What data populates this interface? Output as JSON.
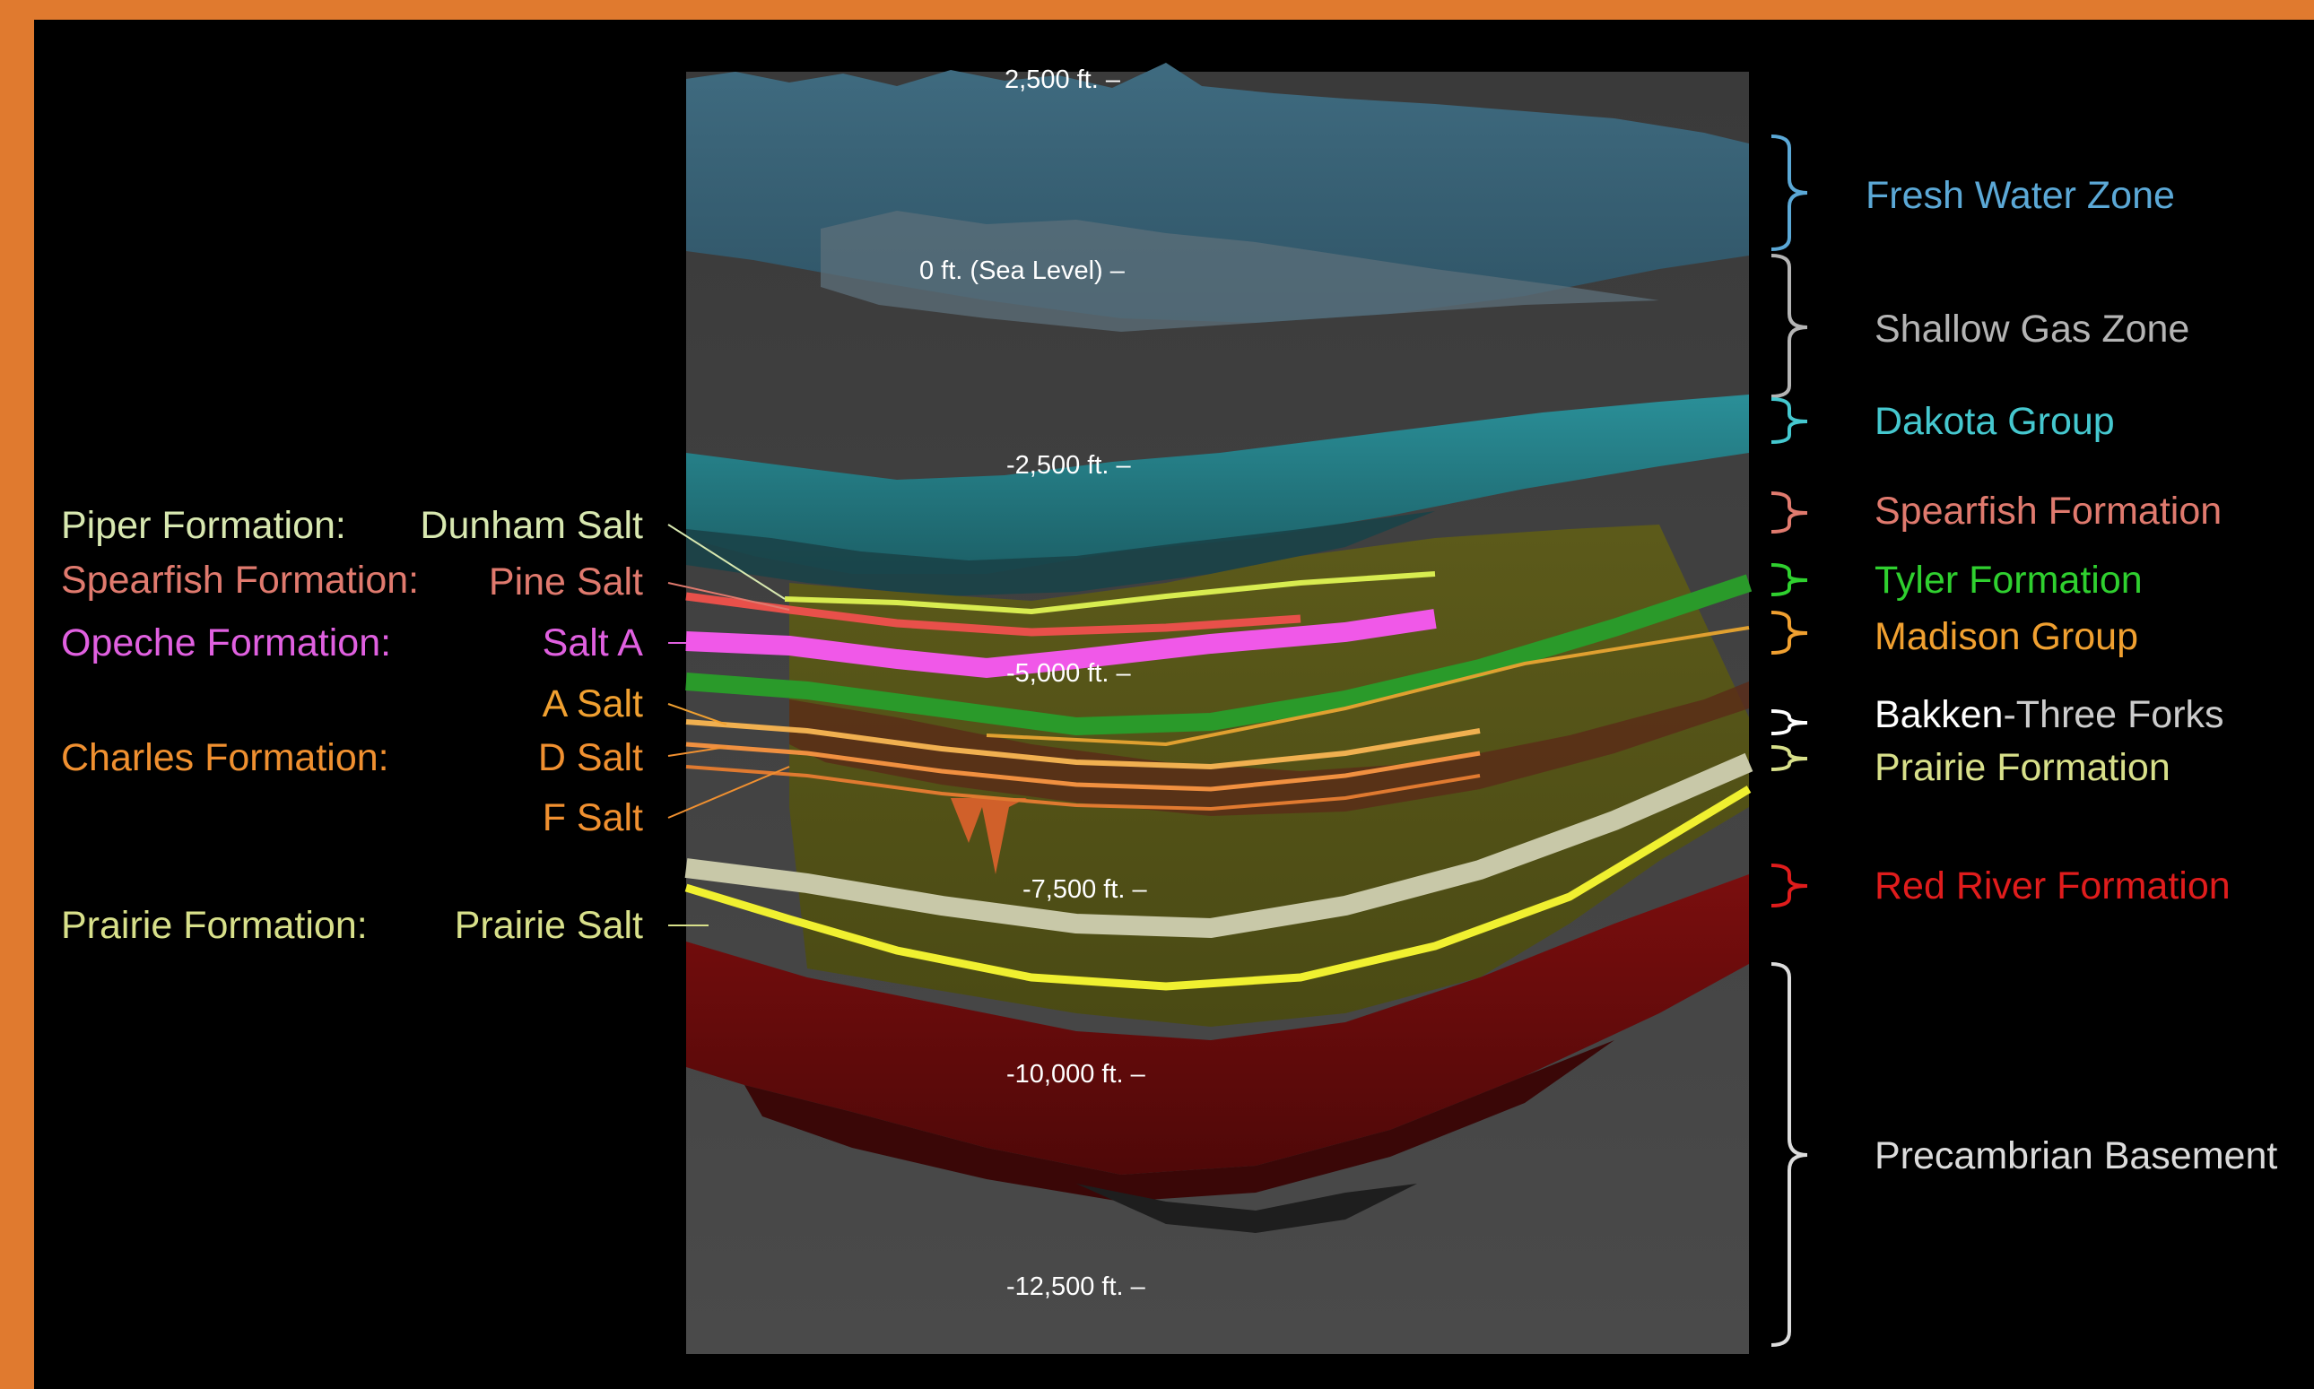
{
  "colors": {
    "frame": "#e07a2f",
    "fresh_water": "#5ba8d6",
    "shallow_gas": "#b4b4b4",
    "dakota": "#45c8cf",
    "spearfish": "#e07a6e",
    "tyler": "#2fd02f",
    "madison": "#f0a030",
    "bakken": "#ffffff",
    "prairie": "#d8e08a",
    "red_river": "#e01c1c",
    "precambrian": "#dcdcdc",
    "piper": "#d8e8b0",
    "opeche": "#e060e0",
    "charles": "#f09030"
  },
  "depth_labels": [
    "2,500 ft. –",
    "0 ft. (Sea Level) –",
    "-2,500 ft. –",
    "-5,000 ft. –",
    "-7,500 ft. –",
    "-10,000 ft. –",
    "-12,500 ft. –"
  ],
  "left_labels": {
    "piper_formation": "Piper Formation:",
    "dunham_salt": "Dunham Salt",
    "spearfish_formation": "Spearfish Formation:",
    "pine_salt": "Pine Salt",
    "opeche_formation": "Opeche Formation:",
    "salt_a": "Salt A",
    "a_salt": "A Salt",
    "charles_formation": "Charles Formation:",
    "d_salt": "D Salt",
    "f_salt": "F Salt",
    "prairie_formation": "Prairie Formation:",
    "prairie_salt": "Prairie Salt"
  },
  "right_labels": {
    "fresh_water_zone": "Fresh Water Zone",
    "shallow_gas_zone": "Shallow Gas Zone",
    "dakota_group": "Dakota Group",
    "spearfish_formation": "Spearfish Formation",
    "tyler_formation": "Tyler Formation",
    "madison_group": "Madison Group",
    "bakken": "Bakken",
    "three_forks": "-Three Forks",
    "prairie_formation": "Prairie Formation",
    "red_river_formation": "Red River Formation",
    "precambrian_basement": "Precambrian Basement"
  }
}
